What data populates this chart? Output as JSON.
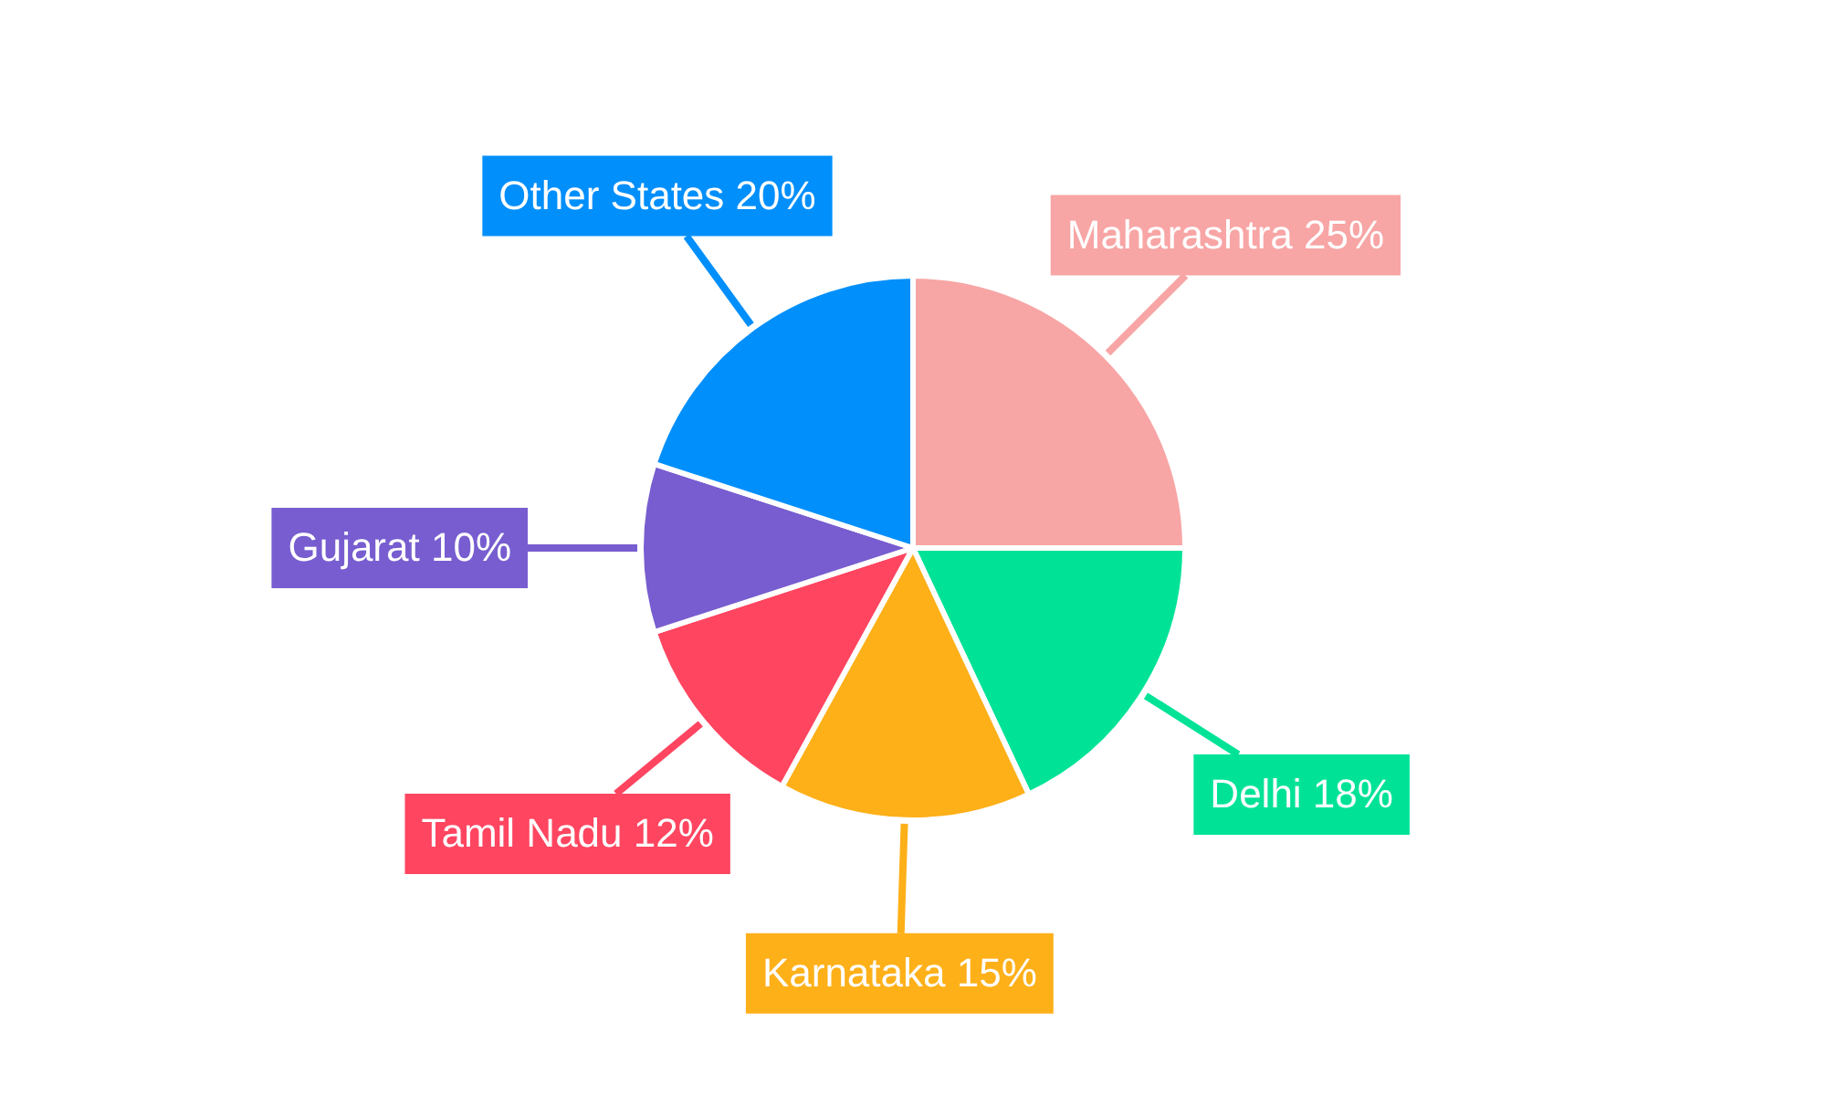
{
  "chart_data": {
    "type": "pie",
    "categories": [
      "Maharashtra",
      "Delhi",
      "Karnataka",
      "Tamil Nadu",
      "Gujarat",
      "Other States"
    ],
    "values": [
      25,
      18,
      15,
      12,
      10,
      20
    ],
    "value_labels": [
      "25%",
      "18%",
      "15%",
      "12%",
      "10%",
      "20%"
    ],
    "colors": [
      "#f8a5a5",
      "#00e396",
      "#feb019",
      "#ff4560",
      "#775dd0",
      "#008ffb"
    ],
    "legend": false
  }
}
